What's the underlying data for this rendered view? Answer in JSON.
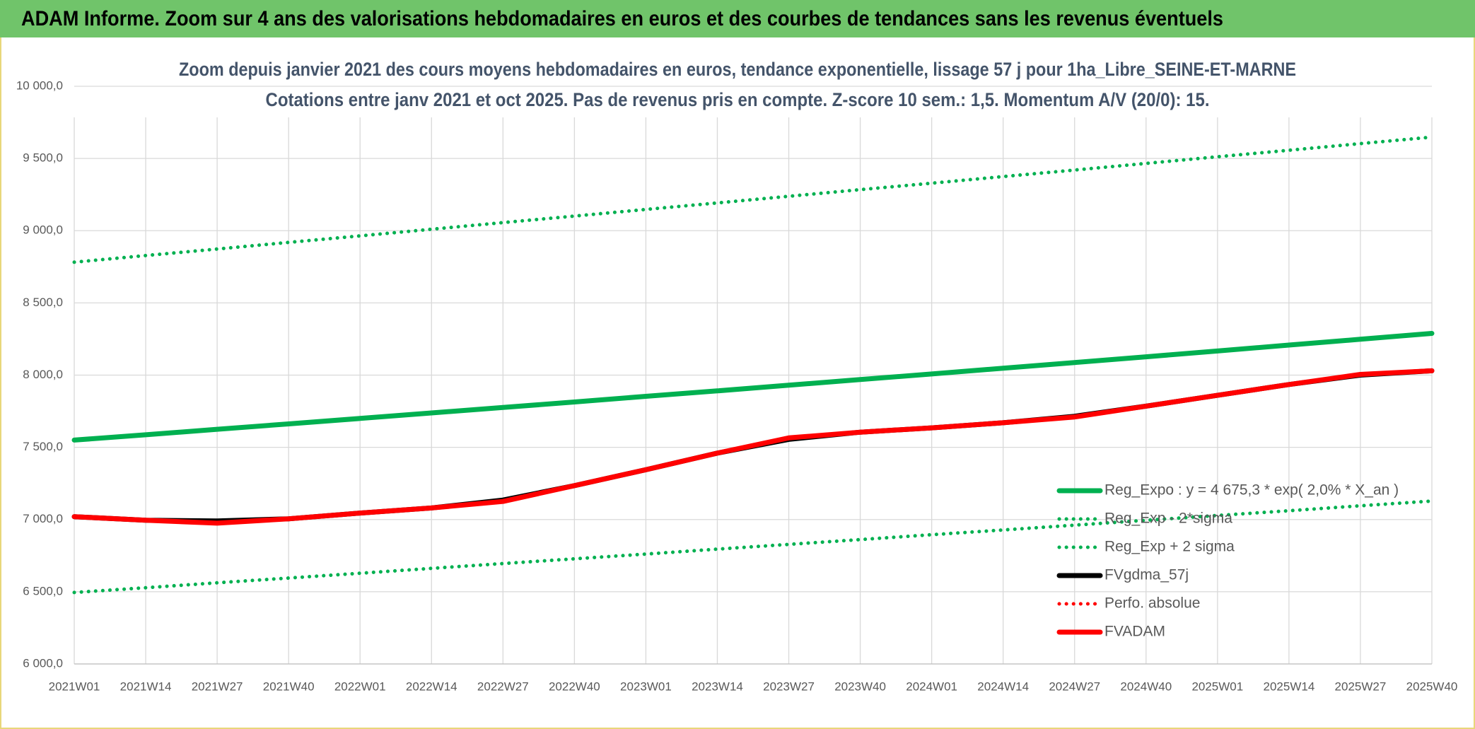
{
  "header": {
    "title": "ADAM Informe. Zoom sur 4 ans des valorisations hebdomadaires en euros et des courbes de tendances sans les revenus éventuels"
  },
  "chart_data": {
    "type": "line",
    "title": "Zoom depuis janvier 2021 des cours moyens hebdomadaires en euros, tendance exponentielle, lissage 57 j pour 1ha_Libre_SEINE-ET-MARNE",
    "subtitle": "Cotations entre janv 2021 et oct 2025. Pas de revenus pris en compte. Z-score 10 sem.: 1,5. Momentum A/V (20/0): 15.",
    "categories": [
      "2021W01",
      "2021W14",
      "2021W27",
      "2021W40",
      "2022W01",
      "2022W14",
      "2022W27",
      "2022W40",
      "2023W01",
      "2023W14",
      "2023W27",
      "2023W40",
      "2024W01",
      "2024W14",
      "2024W27",
      "2024W40",
      "2025W01",
      "2025W14",
      "2025W27",
      "2025W40"
    ],
    "ylim": [
      6000,
      10000
    ],
    "yticks": [
      {
        "value": 6000,
        "label": "6 000,0"
      },
      {
        "value": 6500,
        "label": "6 500,0"
      },
      {
        "value": 7000,
        "label": "7 000,0"
      },
      {
        "value": 7500,
        "label": "7 500,0"
      },
      {
        "value": 8000,
        "label": "8 000,0"
      },
      {
        "value": 8500,
        "label": "8 500,0"
      },
      {
        "value": 9000,
        "label": "9 000,0"
      },
      {
        "value": 9500,
        "label": "9 500,0"
      },
      {
        "value": 10000,
        "label": "10 000,0"
      }
    ],
    "grid": true,
    "legend": "right",
    "series": [
      {
        "name": "Reg_Expo : y = 4 675,3 * exp( 2,0% *  X_an )",
        "color": "#00b050",
        "line_style": "solid",
        "values": [
          7550,
          7587,
          7625,
          7662,
          7700,
          7738,
          7776,
          7814,
          7853,
          7891,
          7930,
          7969,
          8008,
          8048,
          8087,
          8127,
          8167,
          8208,
          8248,
          8289
        ]
      },
      {
        "name": "Reg_Exp - 2*sigma",
        "color": "#00b050",
        "line_style": "dotted",
        "values": [
          6495,
          6528,
          6562,
          6595,
          6628,
          6662,
          6695,
          6728,
          6761,
          6795,
          6828,
          6861,
          6895,
          6928,
          6961,
          6995,
          7028,
          7061,
          7095,
          7128
        ]
      },
      {
        "name": "Reg_Exp + 2 sigma",
        "color": "#00b050",
        "line_style": "dotted",
        "values": [
          8782,
          8828,
          8873,
          8919,
          8964,
          9010,
          9056,
          9101,
          9147,
          9192,
          9238,
          9284,
          9329,
          9375,
          9420,
          9466,
          9512,
          9557,
          9603,
          9648
        ]
      },
      {
        "name": "FVgdma_57j",
        "color": "#000000",
        "line_style": "solid",
        "values": [
          7020,
          6995,
          6990,
          7005,
          7045,
          7080,
          7135,
          7235,
          7345,
          7460,
          7555,
          7605,
          7635,
          7670,
          7715,
          7785,
          7860,
          7935,
          8000,
          8030
        ]
      },
      {
        "name": "Perfo. absolue",
        "color": "#ff0000",
        "line_style": "dotted",
        "values": [
          7020,
          6995,
          6975,
          7005,
          7045,
          7080,
          7125,
          7235,
          7345,
          7460,
          7565,
          7605,
          7635,
          7670,
          7710,
          7785,
          7860,
          7935,
          8005,
          8030
        ]
      },
      {
        "name": "FVADAM",
        "color": "#ff0000",
        "line_style": "solid",
        "values": [
          7020,
          6995,
          6975,
          7005,
          7045,
          7080,
          7125,
          7235,
          7345,
          7460,
          7565,
          7605,
          7635,
          7670,
          7710,
          7785,
          7860,
          7935,
          8005,
          8030
        ]
      }
    ]
  }
}
